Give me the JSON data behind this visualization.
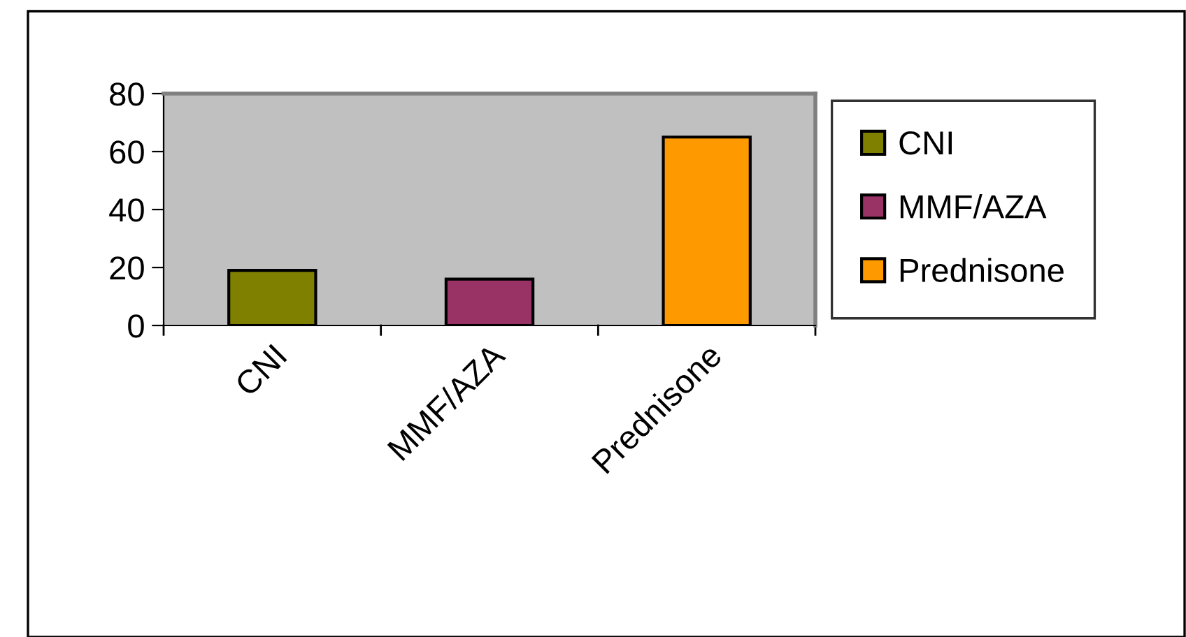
{
  "chart_data": {
    "type": "bar",
    "categories": [
      "CNI",
      "MMF/AZA",
      "Prednisone"
    ],
    "series": [
      {
        "name": "CNI",
        "color": "#808000",
        "values": [
          19,
          null,
          null
        ]
      },
      {
        "name": "MMF/AZA",
        "color": "#993366",
        "values": [
          null,
          16,
          null
        ]
      },
      {
        "name": "Prednisone",
        "color": "#ff9900",
        "values": [
          null,
          null,
          65
        ]
      }
    ],
    "ylim": [
      0,
      80
    ],
    "yticks": [
      0,
      20,
      40,
      60,
      80
    ],
    "grid": false,
    "legend": "right"
  }
}
